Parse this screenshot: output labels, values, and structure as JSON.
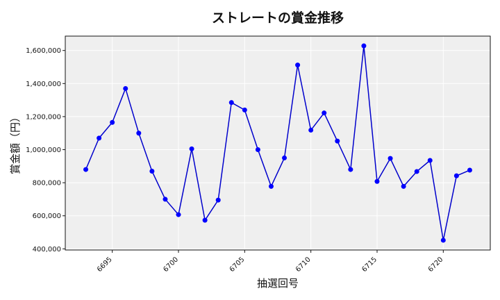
{
  "chart_data": {
    "type": "line",
    "title": "ストレートの賞金推移",
    "xlabel": "抽選回号",
    "ylabel": "賞金額（円）",
    "x": [
      6693,
      6694,
      6695,
      6696,
      6697,
      6698,
      6699,
      6700,
      6701,
      6702,
      6703,
      6704,
      6705,
      6706,
      6707,
      6708,
      6709,
      6710,
      6711,
      6712,
      6713,
      6714,
      6715,
      6716,
      6717,
      6718,
      6719,
      6720,
      6721,
      6722
    ],
    "series": [
      {
        "values": [
          880000,
          1070000,
          1165000,
          1370000,
          1100000,
          870000,
          700000,
          607000,
          1005000,
          573000,
          695000,
          1285000,
          1240000,
          1000000,
          778000,
          950000,
          1512000,
          1118000,
          1222000,
          1052000,
          880000,
          1628000,
          808000,
          947000,
          778000,
          868000,
          935000,
          452000,
          842000,
          876000
        ]
      }
    ],
    "xlim": [
      6691.45,
      6723.55
    ],
    "ylim": [
      393000,
      1687000
    ],
    "xticks": [
      6695,
      6700,
      6705,
      6710,
      6715,
      6720
    ],
    "xtick_labels": [
      "6695",
      "6700",
      "6705",
      "6710",
      "6715",
      "6720"
    ],
    "yticks": [
      400000,
      600000,
      800000,
      1000000,
      1200000,
      1400000,
      1600000
    ],
    "ytick_labels": [
      "400,000",
      "600,000",
      "800,000",
      "1,000,000",
      "1,200,000",
      "1,400,000",
      "1,600,000"
    ],
    "grid": true,
    "colors": {
      "line": "#0000cc",
      "marker": "#0000ff",
      "plot_bg": "#efefef",
      "grid": "#ffffff"
    }
  }
}
